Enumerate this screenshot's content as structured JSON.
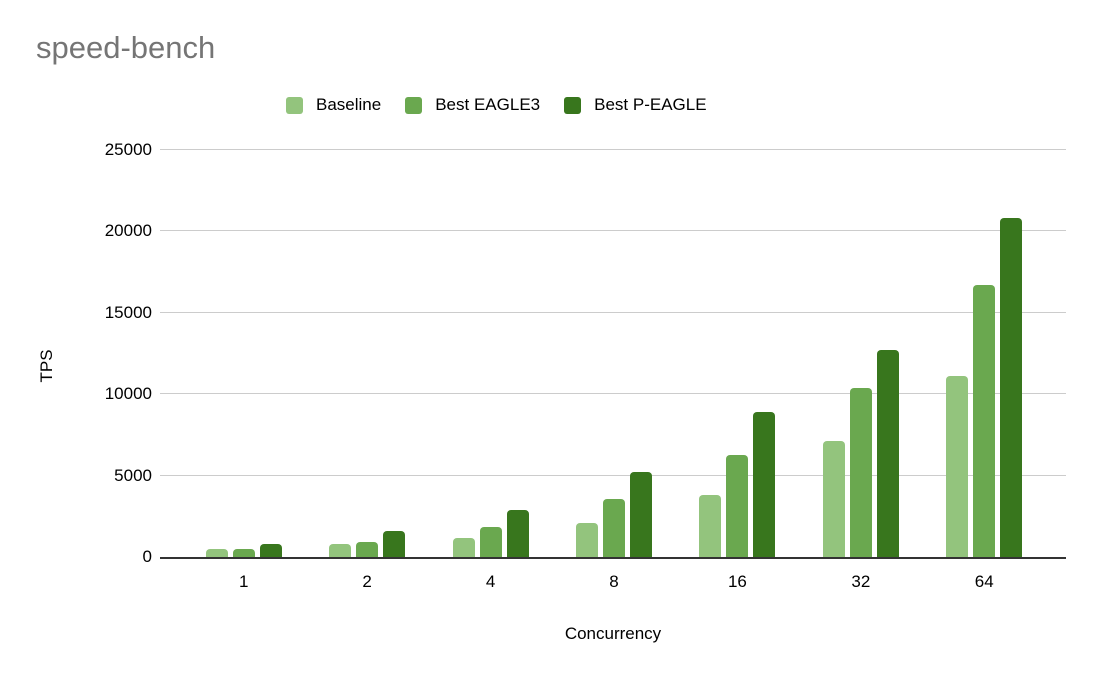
{
  "title": "speed-bench",
  "colors": {
    "title_text": "#757575",
    "axis_text": "#000000",
    "gridline": "#cccccc",
    "axis_line": "#333333",
    "background": "#ffffff"
  },
  "chart_data": {
    "type": "bar",
    "title": "speed-bench",
    "xlabel": "Concurrency",
    "ylabel": "TPS",
    "categories": [
      "1",
      "2",
      "4",
      "8",
      "16",
      "32",
      "64"
    ],
    "series": [
      {
        "name": "Baseline",
        "color": "#93c47d",
        "values": [
          480,
          780,
          1200,
          2100,
          3800,
          7100,
          11100
        ]
      },
      {
        "name": "Best EAGLE3",
        "color": "#6aa84f",
        "values": [
          500,
          920,
          1850,
          3550,
          6250,
          10400,
          16700
        ]
      },
      {
        "name": "Best P-EAGLE",
        "color": "#38761d",
        "values": [
          800,
          1600,
          2900,
          5250,
          8900,
          12700,
          20800
        ]
      }
    ],
    "ylim": [
      0,
      25000
    ],
    "ytick_step": 5000,
    "yticks": [
      "0",
      "5000",
      "10000",
      "15000",
      "20000",
      "25000"
    ],
    "grid": true,
    "legend_position": "top"
  }
}
